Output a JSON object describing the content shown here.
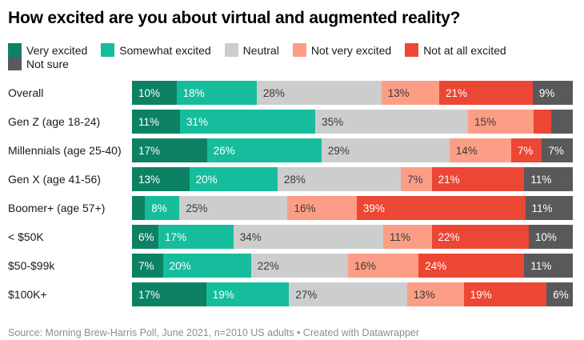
{
  "title": "How excited are you about virtual and augmented reality?",
  "footer": "Source: Morning Brew-Harris Poll, June 2021, n=2010 US adults • Created with Datawrapper",
  "colors": {
    "background": "#ffffff",
    "title_text": "#000000",
    "row_label_text": "#1a1a1a",
    "footer_text": "#8e8e8e"
  },
  "chart_data": {
    "type": "bar",
    "variant": "stacked-horizontal-percentage",
    "unit": "%",
    "legend_position": "top",
    "grid": false,
    "categories": [
      "Overall",
      "Gen Z (age 18-24)",
      "Millennials (age 25-40)",
      "Gen X (age 41-56)",
      "Boomer+ (age 57+)",
      "< $50K",
      "$50-$99k",
      "$100K+"
    ],
    "series": [
      {
        "name": "Very excited",
        "color": "#0d8164",
        "label_color": "#ffffff",
        "values": [
          10,
          11,
          17,
          13,
          3,
          6,
          7,
          17
        ],
        "hidden_labels": [
          4
        ]
      },
      {
        "name": "Somewhat excited",
        "color": "#16bd9d",
        "label_color": "#ffffff",
        "values": [
          18,
          31,
          26,
          20,
          8,
          17,
          20,
          19
        ],
        "hidden_labels": []
      },
      {
        "name": "Neutral",
        "color": "#cccecd",
        "label_color": "#3a3a3a",
        "values": [
          28,
          35,
          29,
          28,
          25,
          34,
          22,
          27
        ],
        "hidden_labels": []
      },
      {
        "name": "Not very excited",
        "color": "#fc9e85",
        "label_color": "#3a3a3a",
        "values": [
          13,
          15,
          14,
          7,
          16,
          11,
          16,
          13
        ],
        "hidden_labels": []
      },
      {
        "name": "Not at all excited",
        "color": "#ec4734",
        "label_color": "#ffffff",
        "values": [
          21,
          4,
          7,
          21,
          39,
          22,
          24,
          19
        ],
        "hidden_labels": [
          1
        ]
      },
      {
        "name": "Not sure",
        "color": "#59595b",
        "label_color": "#ffffff",
        "values": [
          9,
          5,
          7,
          11,
          11,
          10,
          11,
          6
        ],
        "hidden_labels": [
          1
        ]
      }
    ]
  }
}
